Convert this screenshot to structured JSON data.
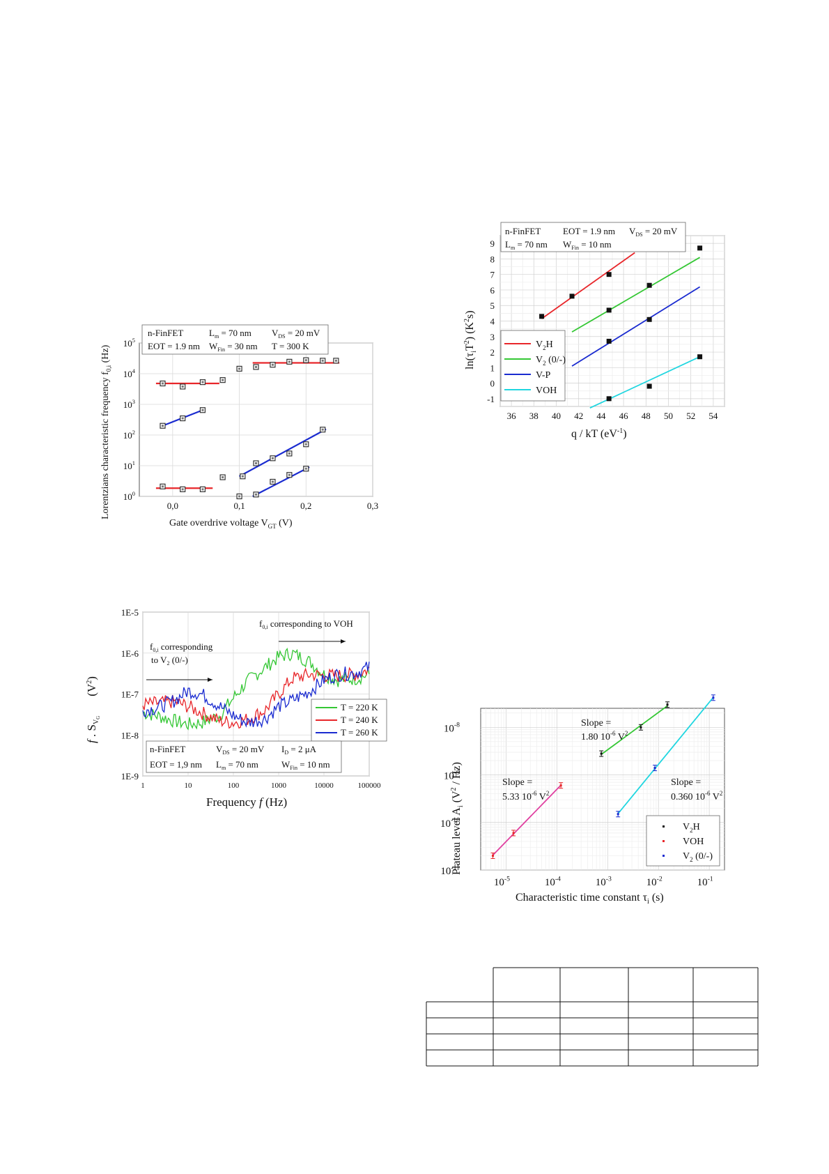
{
  "chart_data": [
    {
      "type": "scatter",
      "yscale": "log",
      "xlabel": "Gate overdrive voltage V",
      "xlabel_sub": "GT",
      "xlabel_unit": " (V)",
      "ylabel": "Lorentzians characteristic frequency f",
      "ylabel_sub": "0,i",
      "ylabel_unit": " (Hz)",
      "xlim": [
        -0.05,
        0.3
      ],
      "ylim": [
        1,
        100000
      ],
      "xticks": [
        {
          "v": 0.0,
          "label": "0,0"
        },
        {
          "v": 0.1,
          "label": "0,1"
        },
        {
          "v": 0.2,
          "label": "0,2"
        },
        {
          "v": 0.3,
          "label": "0,3"
        }
      ],
      "yticks": [
        {
          "exp": 0,
          "label": "10"
        },
        {
          "exp": 1,
          "label": "10"
        },
        {
          "exp": 2,
          "label": "10"
        },
        {
          "exp": 3,
          "label": "10"
        },
        {
          "exp": 4,
          "label": "10"
        },
        {
          "exp": 5,
          "label": "10"
        }
      ],
      "ytick_exps": [
        "0",
        "1",
        "2",
        "3",
        "4",
        "5"
      ],
      "info": {
        "c1": "n-FinFET",
        "c2a": "L",
        "c2b": "m",
        "c2c": " = 70 nm",
        "c3a": "V",
        "c3b": "DS",
        "c3c": " = 20 mV",
        "d1": "EOT = 1.9 nm",
        "d2a": "W",
        "d2b": "Fin",
        "d2c": " = 30 nm",
        "d3": "T = 300 K"
      },
      "points": [
        [
          -0.015,
          4800
        ],
        [
          0.015,
          3800
        ],
        [
          0.045,
          5300
        ],
        [
          0.075,
          6200
        ],
        [
          0.1,
          14500
        ],
        [
          0.125,
          16500
        ],
        [
          0.15,
          19500
        ],
        [
          0.175,
          24500
        ],
        [
          0.2,
          27500
        ],
        [
          0.225,
          26500
        ],
        [
          0.245,
          26500
        ],
        [
          -0.015,
          200
        ],
        [
          0.015,
          350
        ],
        [
          0.045,
          650
        ],
        [
          0.125,
          12
        ],
        [
          0.15,
          17.5
        ],
        [
          0.175,
          25
        ],
        [
          0.2,
          50
        ],
        [
          0.225,
          150
        ],
        [
          0.105,
          4.5
        ],
        [
          0.125,
          1.15
        ],
        [
          0.15,
          3
        ],
        [
          0.175,
          5
        ],
        [
          0.2,
          8
        ],
        [
          -0.015,
          2.1
        ],
        [
          0.015,
          1.7
        ],
        [
          0.045,
          1.7
        ],
        [
          0.075,
          4.2
        ],
        [
          0.1,
          1.0
        ]
      ],
      "fits": [
        {
          "color": "#e8262a",
          "x": [
            -0.025,
            0.07
          ],
          "y": [
            4800,
            4800
          ]
        },
        {
          "color": "#e8262a",
          "x": [
            0.12,
            0.25
          ],
          "y": [
            22500,
            22500
          ]
        },
        {
          "color": "#1a2bd0",
          "x": [
            -0.015,
            0.045
          ],
          "y": [
            200,
            650
          ]
        },
        {
          "color": "#1a2bd0",
          "x": [
            0.1,
            0.23
          ],
          "y": [
            4.5,
            155
          ]
        },
        {
          "color": "#1a2bd0",
          "x": [
            0.12,
            0.205
          ],
          "y": [
            1.0,
            9
          ]
        },
        {
          "color": "#e8262a",
          "x": [
            -0.025,
            0.06
          ],
          "y": [
            1.85,
            1.85
          ]
        }
      ]
    },
    {
      "type": "line",
      "yscale": "log",
      "xscale": "log",
      "xlabel": "Frequency ",
      "xlabel_italic": "f",
      "xlabel_unit": "   (Hz)",
      "ylabel_a": "f",
      "ylabel_b": " . S",
      "ylabel_c": "V",
      "ylabel_d": "G",
      "ylabel_e": "(V",
      "ylabel_f": "2",
      "ylabel_g": ")",
      "xticks": [
        "1",
        "10",
        "100",
        "1000",
        "10000",
        "100000"
      ],
      "yticks": [
        "1E-9",
        "1E-8",
        "1E-7",
        "1E-6",
        "1E-5"
      ],
      "ylim": [
        "1E-9",
        "1E-5"
      ],
      "xlim": [
        1,
        100000
      ],
      "annotations": {
        "a1a": "f",
        "a1b": "0,i",
        "a1c": " corresponding",
        "a1d": "to V",
        "a1e": "2",
        "a1f": " (0/-)",
        "a2a": "f",
        "a2b": "0,i",
        "a2c": " corresponding to VOH"
      },
      "legend": [
        {
          "label": "T = 220 K",
          "color": "#34c734"
        },
        {
          "label": "T = 240 K",
          "color": "#e8262a"
        },
        {
          "label": "T = 260 K",
          "color": "#1a2bd0"
        }
      ],
      "info": {
        "r1": "n-FinFET",
        "r2a": "V",
        "r2b": "DS",
        "r2c": " = 20 mV",
        "r3a": "I",
        "r3b": "D",
        "r3c": " = 2 μA",
        "r4": "EOT = 1,9 nm",
        "r5a": "L",
        "r5b": "m",
        "r5c": " = 70 nm",
        "r6a": "W",
        "r6b": "Fin",
        "r6c": " = 10 nm"
      },
      "series": [
        {
          "name": "T = 220 K",
          "color": "#34c734",
          "x": [
            1,
            2,
            5,
            10,
            20,
            50,
            100,
            200,
            500,
            1000,
            2000,
            5000,
            10000,
            20000,
            50000,
            100000
          ],
          "y": [
            3.5e-08,
            3e-08,
            2.2e-08,
            1.8e-08,
            2e-08,
            3e-08,
            8e-08,
            2e-07,
            4.5e-07,
            8e-07,
            1e-06,
            6e-07,
            3e-07,
            2.2e-07,
            2.4e-07,
            3e-07
          ]
        },
        {
          "name": "T = 240 K",
          "color": "#e8262a",
          "x": [
            1,
            2,
            5,
            10,
            20,
            50,
            100,
            200,
            500,
            1000,
            2000,
            5000,
            10000,
            20000,
            50000,
            100000
          ],
          "y": [
            5.5e-08,
            6e-08,
            6.5e-08,
            5e-08,
            3.5e-08,
            2.2e-08,
            2e-08,
            2.4e-08,
            4e-08,
            1e-07,
            2.4e-07,
            3e-07,
            2.8e-07,
            2.8e-07,
            3e-07,
            4e-07
          ]
        },
        {
          "name": "T = 260 K",
          "color": "#1a2bd0",
          "x": [
            1,
            2,
            5,
            10,
            20,
            50,
            100,
            200,
            500,
            1000,
            2000,
            5000,
            10000,
            20000,
            50000,
            100000
          ],
          "y": [
            4e-08,
            4.5e-08,
            7e-08,
            1.2e-07,
            1e-07,
            5e-08,
            3e-08,
            2e-08,
            2.5e-08,
            5e-08,
            7e-08,
            1.2e-07,
            2.2e-07,
            3e-07,
            3.3e-07,
            4.5e-07
          ]
        }
      ]
    },
    {
      "type": "scatter",
      "xlabel_a": "q / kT   (eV",
      "xlabel_b": "-1",
      "xlabel_c": ")",
      "ylabel_a": "ln(τ",
      "ylabel_b": "i",
      "ylabel_c": "T",
      "ylabel_d": "2",
      "ylabel_e": ")  (K",
      "ylabel_f": "2",
      "ylabel_g": "s)",
      "xlim": [
        35,
        55
      ],
      "ylim": [
        -1.5,
        9.5
      ],
      "xticks": [
        "36",
        "38",
        "40",
        "42",
        "44",
        "46",
        "48",
        "50",
        "52",
        "54"
      ],
      "yticks": [
        "-1",
        "0",
        "1",
        "2",
        "3",
        "4",
        "5",
        "6",
        "7",
        "8",
        "9"
      ],
      "info": {
        "c1": "n-FinFET",
        "c2": "EOT = 1.9 nm",
        "c3a": "V",
        "c3b": "DS",
        "c3c": " = 20 mV",
        "d1a": "L",
        "d1b": "m",
        "d1c": " = 70 nm",
        "d2a": "W",
        "d2b": "Fin",
        "d2c": " = 10 nm"
      },
      "legend": [
        {
          "a": "V",
          "b": "2",
          "c": "H",
          "color": "#e8262a"
        },
        {
          "a": "V",
          "b": "2",
          "c": " (0/-)",
          "color": "#34c734"
        },
        {
          "a": "V-P",
          "b": "",
          "c": "",
          "color": "#1a2bd0"
        },
        {
          "a": "VOH",
          "b": "",
          "c": "",
          "color": "#20d6e0"
        }
      ],
      "points": [
        [
          38.7,
          4.3
        ],
        [
          41.4,
          5.6
        ],
        [
          44.7,
          7.0
        ],
        [
          52.8,
          8.7
        ],
        [
          44.7,
          4.7
        ],
        [
          48.3,
          6.3
        ],
        [
          44.7,
          2.7
        ],
        [
          48.3,
          4.1
        ],
        [
          44.7,
          -1.0
        ],
        [
          48.3,
          -0.2
        ],
        [
          52.8,
          1.7
        ]
      ],
      "fits": [
        {
          "color": "#e8262a",
          "x": [
            38.7,
            47.0
          ],
          "y": [
            4.15,
            8.4
          ]
        },
        {
          "color": "#34c734",
          "x": [
            41.4,
            52.8
          ],
          "y": [
            3.3,
            8.1
          ]
        },
        {
          "color": "#1a2bd0",
          "x": [
            41.4,
            52.8
          ],
          "y": [
            1.1,
            6.2
          ]
        },
        {
          "color": "#20d6e0",
          "x": [
            43.0,
            52.8
          ],
          "y": [
            -1.6,
            1.7
          ]
        }
      ]
    },
    {
      "type": "scatter",
      "xscale": "log",
      "yscale": "log",
      "xlabel_a": "Characteristic time constant τ",
      "xlabel_b": "i",
      "xlabel_c": "     (s)",
      "ylabel_a": "Plateau level A",
      "ylabel_b": "i",
      "ylabel_c": "   (V",
      "ylabel_d": "2",
      "ylabel_e": " / Hz)",
      "xlim_exp": [
        -5.5,
        -0.7
      ],
      "ylim_exp": [
        -11,
        -7.6
      ],
      "xtick_exps": [
        "-5",
        "-4",
        "-3",
        "-2",
        "-1"
      ],
      "ytick_exps": [
        "-11",
        "-10",
        "-9",
        "-8"
      ],
      "tick_base": "10",
      "annotations": {
        "s1a": "Slope =",
        "s1b": "1.80 10",
        "s1c": "-6",
        "s1d": " V",
        "s1e": "2",
        "s2a": "Slope =",
        "s2b": "5.33 10",
        "s2c": "-6",
        "s2d": " V",
        "s2e": "2",
        "s3a": "Slope =",
        "s3b": "0.360 10",
        "s3c": "-6",
        "s3d": " V",
        "s3e": "2"
      },
      "legend": [
        {
          "a": "V",
          "b": "2",
          "c": "H",
          "color": "#111111"
        },
        {
          "a": "VOH",
          "b": "",
          "c": "",
          "color": "#e8262a"
        },
        {
          "a": "V",
          "b": "2",
          "c": " (0/-)",
          "color": "#1a2bd0"
        }
      ],
      "series": [
        {
          "name": "V2H",
          "color": "#111111",
          "fit": "#34c734",
          "x": [
            0.00075,
            0.0045,
            0.015
          ],
          "y": [
            2.8e-09,
            1e-08,
            3e-08
          ]
        },
        {
          "name": "VOH",
          "color": "#e8262a",
          "fit": "#e040a0",
          "x": [
            5.5e-06,
            1.4e-05,
            0.00012
          ],
          "y": [
            2e-11,
            6e-11,
            6e-10
          ]
        },
        {
          "name": "V2 (0/-)",
          "color": "#1a2bd0",
          "fit": "#20d6e0",
          "x": [
            0.0016,
            0.0085,
            0.12
          ],
          "y": [
            1.5e-10,
            1.4e-09,
            4.2e-08
          ]
        }
      ]
    }
  ]
}
